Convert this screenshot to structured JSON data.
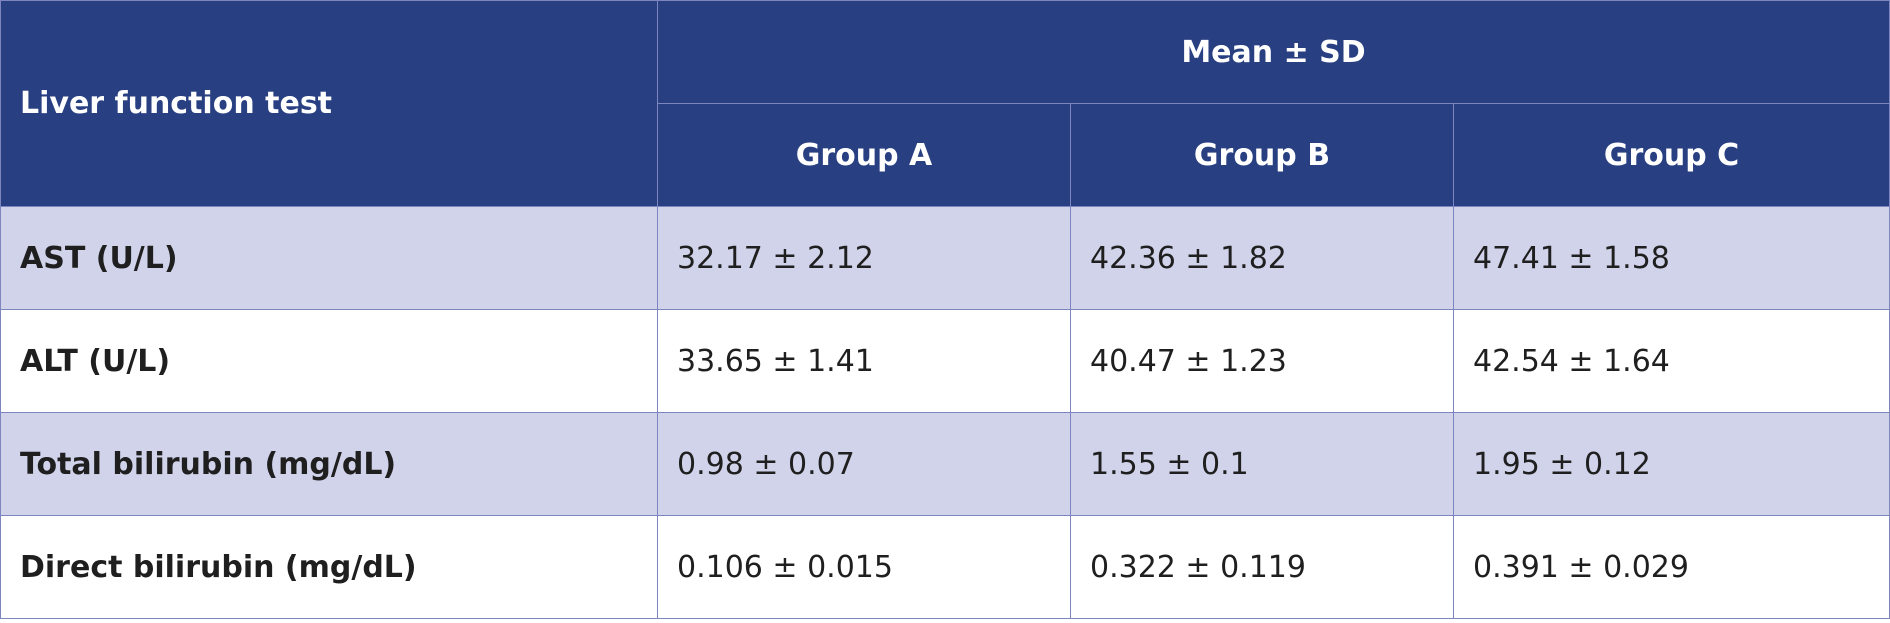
{
  "table": {
    "header": {
      "row_label": "Liver function test",
      "group_label": "Mean ± SD",
      "columns": [
        "Group A",
        "Group B",
        "Group C"
      ]
    },
    "rows": [
      [
        "AST (U/L)",
        "32.17 ± 2.12",
        "42.36 ± 1.82",
        "47.41 ± 1.58"
      ],
      [
        "ALT (U/L)",
        "33.65 ± 1.41",
        "40.47 ± 1.23",
        "42.54 ± 1.64"
      ],
      [
        "Total bilirubin (mg/dL)",
        "0.98 ± 0.07",
        "1.55 ± 0.1",
        "1.95 ± 0.12"
      ],
      [
        "Direct bilirubin (mg/dL)",
        "0.106 ± 0.015",
        "0.322 ± 0.119",
        "0.391 ± 0.029"
      ]
    ]
  }
}
